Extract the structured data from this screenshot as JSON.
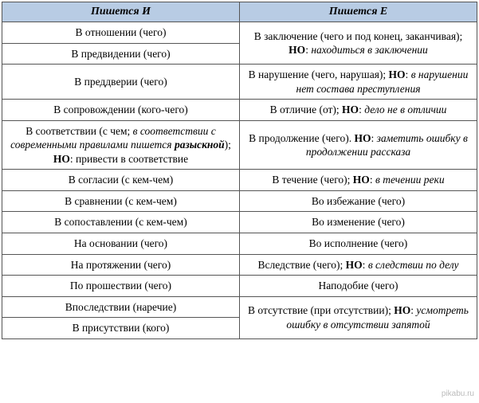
{
  "headers": {
    "left": "Пишется И",
    "right": "Пишется Е"
  },
  "left_col": {
    "r0": "В отношении (чего)",
    "r1": "В предвидении (чего)",
    "r2": "В преддверии (чего)",
    "r3": "В сопровождении (кого-чего)",
    "r4": "В соответствии (с чем; <i>в соответствии с современными правилами пишется <b>разыскной</b></i>); <b>НО</b>: привести в соответствие",
    "r5": "В согласии (с кем-чем)",
    "r6": "В сравнении (с кем-чем)",
    "r7": "В сопоставлении (с кем-чем)",
    "r8": "На основании (чего)",
    "r9": "На протяжении (чего)",
    "r10": "По прошествии (чего)",
    "r11": "Впоследствии (наречие)",
    "r12": "В присутствии (кого)"
  },
  "right_col": {
    "r0": "В заключение (чего и под конец, заканчивая); <b>НО</b>: <i>находиться в заключении</i>",
    "r1": "В нарушение (чего, нарушая); <b>НО</b>: <i>в нарушении нет состава преступления</i>",
    "r2": "В отличие (от); <b>НО</b>: <i>дело не в отличии</i>",
    "r3": "В продолжение (чего). <b>НО</b>: <i>заметить ошибку в продолжении рассказа</i>",
    "r4": "В течение (чего); <b>НО</b>: <i>в течении реки</i>",
    "r5": "Во избежание (чего)",
    "r6": "Во изменение (чего)",
    "r7": "Во исполнение (чего)",
    "r8": "Вследствие (чего); <b>НО</b>: <i>в следствии по делу</i>",
    "r9": "Наподобие (чего)",
    "r10": "В отсутствие (при отсутствии); <b>НО</b>: <i>усмотреть ошибку в отсутствии запятой</i>"
  },
  "watermark": "pikabu.ru",
  "colors": {
    "header_bg": "#b8cce4",
    "border": "#555555",
    "text": "#000000"
  }
}
